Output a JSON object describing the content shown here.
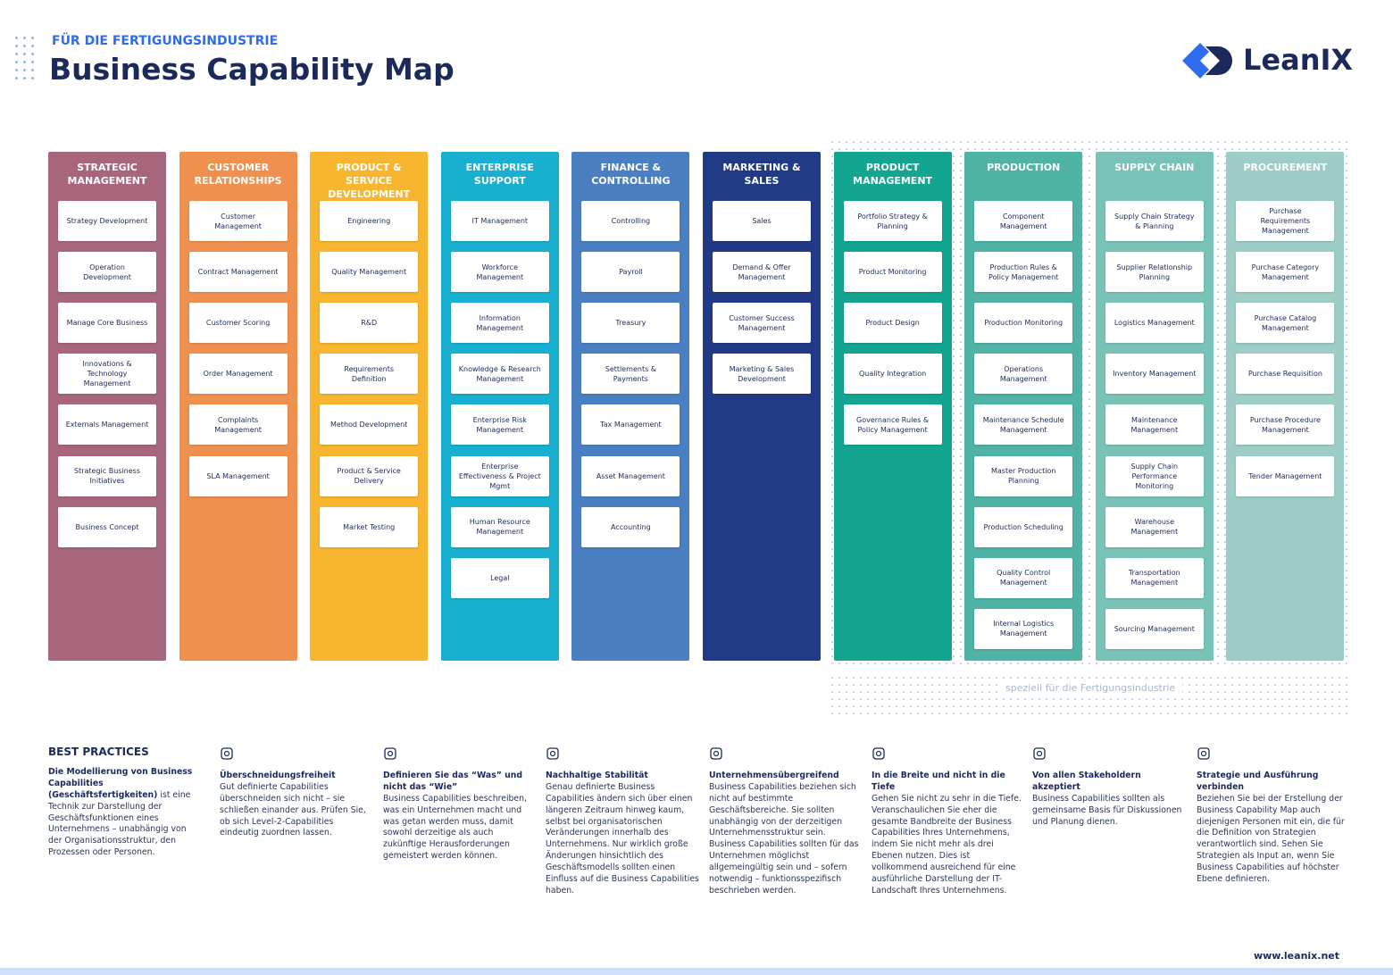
{
  "header": {
    "subtitle": "FÜR DIE FERTIGUNGSINDUSTRIE",
    "title": "Business Capability Map",
    "logo": "LeanIX"
  },
  "columns": [
    {
      "title": "STRATEGIC MANAGEMENT",
      "items": [
        "Strategy Development",
        "Operation Development",
        "Manage Core Business",
        "Innovations & Technology Management",
        "Externals Management",
        "Strategic Business Initiatives",
        "Business Concept"
      ]
    },
    {
      "title": "CUSTOMER RELATIONSHIPS",
      "items": [
        "Customer Management",
        "Contract Management",
        "Customer Scoring",
        "Order Management",
        "Complaints Management",
        "SLA Management"
      ]
    },
    {
      "title": "PRODUCT & SERVICE DEVELOPMENT",
      "items": [
        "Engineering",
        "Quality Management",
        "R&D",
        "Requirements Definition",
        "Method Development",
        "Product & Service Delivery",
        "Market Testing"
      ]
    },
    {
      "title": "ENTERPRISE SUPPORT",
      "items": [
        "IT Management",
        "Workforce Management",
        "Information Management",
        "Knowledge & Research Management",
        "Enterprise Risk Management",
        "Enterprise Effectiveness & Project Mgmt",
        "Human Resource Management",
        "Legal"
      ]
    },
    {
      "title": "FINANCE & CONTROLLING",
      "items": [
        "Controlling",
        "Payroll",
        "Treasury",
        "Settlements & Payments",
        "Tax Management",
        "Asset Management",
        "Accounting"
      ]
    },
    {
      "title": "MARKETING & SALES",
      "items": [
        "Sales",
        "Demand & Offer Management",
        "Customer Success Management",
        "Marketing & Sales Development"
      ]
    },
    {
      "title": "PRODUCT MANAGEMENT",
      "items": [
        "Portfolio Strategy & Planning",
        "Product Monitoring",
        "Product Design",
        "Quality Integration",
        "Governance Rules & Policy Management"
      ]
    },
    {
      "title": "PRODUCTION",
      "items": [
        "Component Management",
        "Production Rules & Policy Management",
        "Production Monitoring",
        "Operations Management",
        "Maintenance Schedule Management",
        "Master Production Planning",
        "Production Scheduling",
        "Quality Control Management",
        "Internal Logistics Management"
      ]
    },
    {
      "title": "SUPPLY CHAIN",
      "items": [
        "Supply Chain Strategy & Planning",
        "Supplier Relationship Planning",
        "Logistics Management",
        "Inventory Management",
        "Maintenance Management",
        "Supply Chain Performance Monitoring",
        "Warehouse Management",
        "Transportation Management",
        "Sourcing Management"
      ]
    },
    {
      "title": "PROCUREMENT",
      "items": [
        "Purchase Requirements Management",
        "Purchase Category Management",
        "Purchase Catalog Management",
        "Purchase Requisition",
        "Purchase Procedure Management",
        "Tender Management"
      ]
    }
  ],
  "special_note": "speziell für die Fertigungsindustrie",
  "best_practices": {
    "heading": "BEST PRACTICES",
    "intro_bold": "Die Modellierung von Business Capabilities (Geschäftsfertigkeiten)",
    "intro": "ist eine Technik zur Darstellung der Geschäftsfunktionen eines Unternehmens – unabhängig von der Organisationsstruktur, den Prozessen oder Personen.",
    "items": [
      {
        "title": "Überschneidungsfreiheit",
        "text": "Gut definierte Capabilities überschneiden sich nicht – sie schließen einander aus. Prüfen Sie, ob sich Level-2-Capabilities eindeutig zuordnen lassen."
      },
      {
        "title": "Definieren Sie das “Was” und nicht das “Wie”",
        "text": "Business Capabilities beschreiben, was ein Unternehmen macht und was getan werden muss, damit sowohl derzeitige als auch zukünftige Herausforderungen gemeistert werden können."
      },
      {
        "title": "Nachhaltige Stabilität",
        "text": "Genau definierte Business Capabilities ändern sich über einen längeren Zeitraum hinweg kaum, selbst bei organisatorischen Veränderungen innerhalb des Unternehmens. Nur wirklich große Änderungen hinsichtlich des Geschäftsmodells sollten einen Einfluss auf die Business Capabilities haben."
      },
      {
        "title": "Unternehmensübergreifend",
        "text": "Business Capabilities beziehen sich nicht auf bestimmte Geschäftsbereiche. Sie sollten unabhängig von der derzeitigen Unternehmensstruktur sein. Business Capabilities sollten für das Unternehmen möglichst allgemeingültig sein und – sofern notwendig – funktionsspezifisch beschrieben werden."
      },
      {
        "title": "In die Breite und nicht in die Tiefe",
        "text": "Gehen Sie nicht zu sehr in die Tiefe. Veranschaulichen Sie eher die gesamte Bandbreite der Business Capabilities Ihres Unternehmens, indem Sie nicht mehr als drei Ebenen nutzen. Dies ist vollkommend ausreichend für eine ausführliche Darstellung der IT-Landschaft Ihres Unternehmens."
      },
      {
        "title": "Von allen Stakeholdern akzeptiert",
        "text": "Business Capabilities sollten als gemeinsame Basis für Diskussionen und Planung dienen."
      },
      {
        "title": "Strategie und Ausführung verbinden",
        "text": "Beziehen Sie bei der Erstellung der Business Capability Map auch diejenigen Personen mit ein, die für die Definition von Strategien verantwortlich sind. Sehen Sie Strategien als Input an, wenn Sie Business Capabilities auf höchster Ebene definieren."
      }
    ]
  },
  "footer": {
    "url": "www.leanix.net"
  }
}
